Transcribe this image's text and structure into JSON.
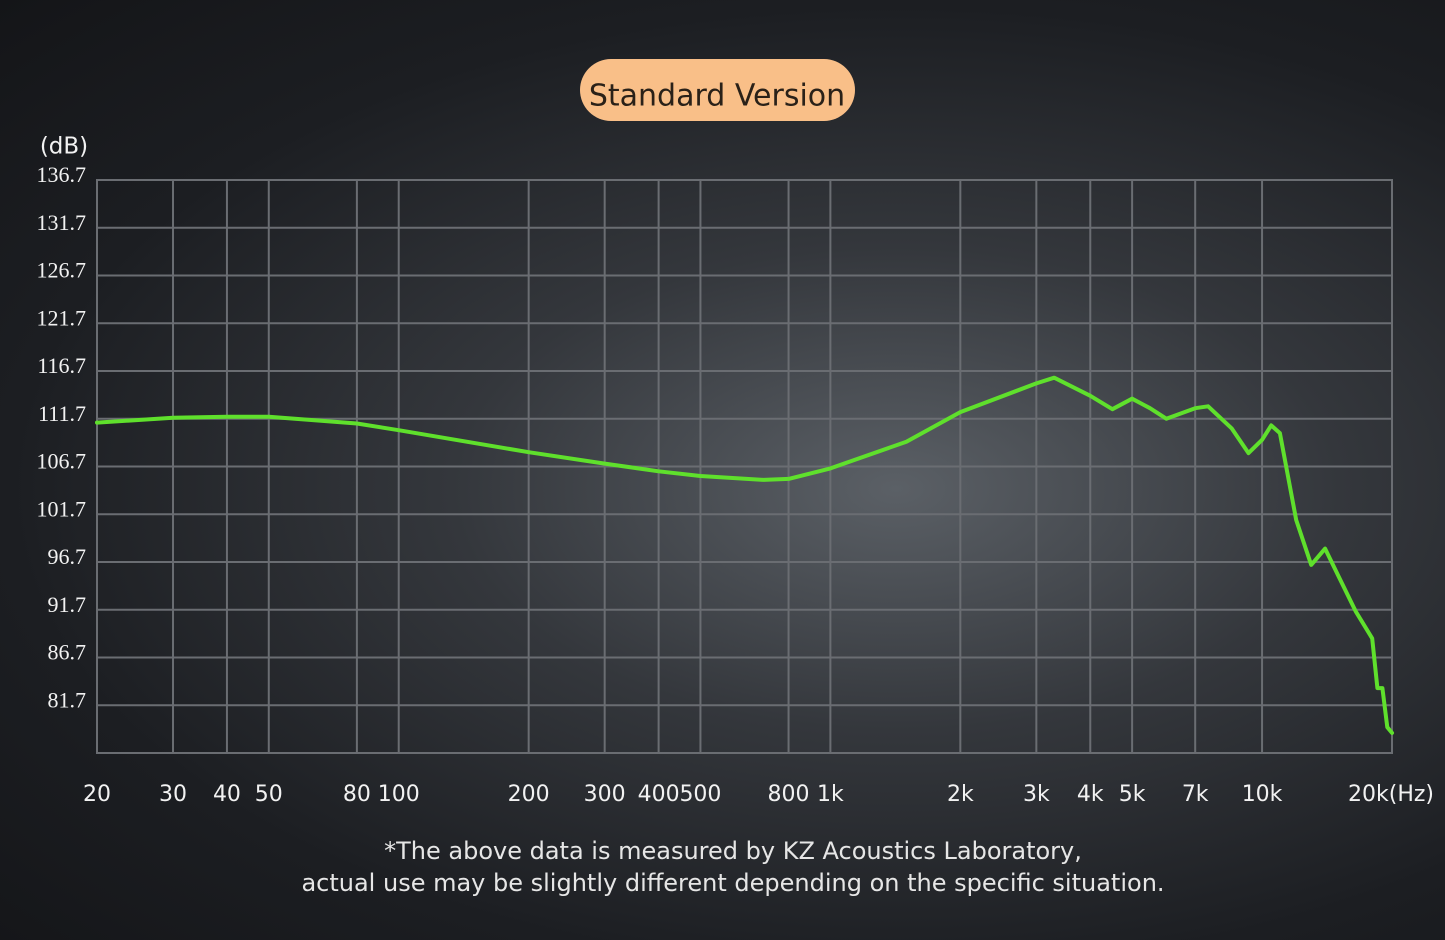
{
  "chart_data": {
    "type": "line",
    "title": "Standard Version",
    "ylabel": "(dB)",
    "footnote": [
      "*The above data is measured by KZ Acoustics Laboratory,",
      "actual use may be slightly different depending on the specific situation."
    ],
    "xscale": "log",
    "grid": true,
    "xlim": [
      20,
      20000
    ],
    "ylim": [
      76.7,
      136.7
    ],
    "yticks": [
      136.7,
      131.7,
      126.7,
      121.7,
      116.7,
      111.7,
      106.7,
      101.7,
      96.7,
      91.7,
      86.7,
      81.7
    ],
    "xticks": [
      20,
      30,
      40,
      50,
      80,
      100,
      200,
      300,
      400,
      500,
      800,
      {
        "value": 1000,
        "label": "1k"
      },
      {
        "value": 2000,
        "label": "2k"
      },
      {
        "value": 3000,
        "label": "3k"
      },
      {
        "value": 4000,
        "label": "4k"
      },
      {
        "value": 5000,
        "label": "5k"
      },
      {
        "value": 7000,
        "label": "7k"
      },
      {
        "value": 10000,
        "label": "10k"
      },
      {
        "value": 20000,
        "label": "20k(Hz)"
      }
    ],
    "x": [
      20,
      30,
      40,
      50,
      80,
      100,
      200,
      300,
      400,
      500,
      700,
      800,
      1000,
      1500,
      2000,
      3000,
      3300,
      4000,
      4500,
      5000,
      5500,
      6000,
      7000,
      7500,
      8500,
      9300,
      10000,
      10500,
      11000,
      12000,
      13000,
      14000,
      15000,
      16500,
      18000,
      18500,
      19000,
      19500,
      20000
    ],
    "series": [
      {
        "name": "Standard Version",
        "color": "#5fe02c",
        "values": [
          111.3,
          111.8,
          111.9,
          111.9,
          111.2,
          110.5,
          108.2,
          107.0,
          106.2,
          105.7,
          105.3,
          105.4,
          106.5,
          109.3,
          112.4,
          115.4,
          116.0,
          114.1,
          112.7,
          113.8,
          112.8,
          111.7,
          112.8,
          113.0,
          110.7,
          108.1,
          109.5,
          111.0,
          110.2,
          101.1,
          96.4,
          98.1,
          95.3,
          91.5,
          88.7,
          83.5,
          83.5,
          79.4,
          78.8
        ]
      }
    ]
  }
}
